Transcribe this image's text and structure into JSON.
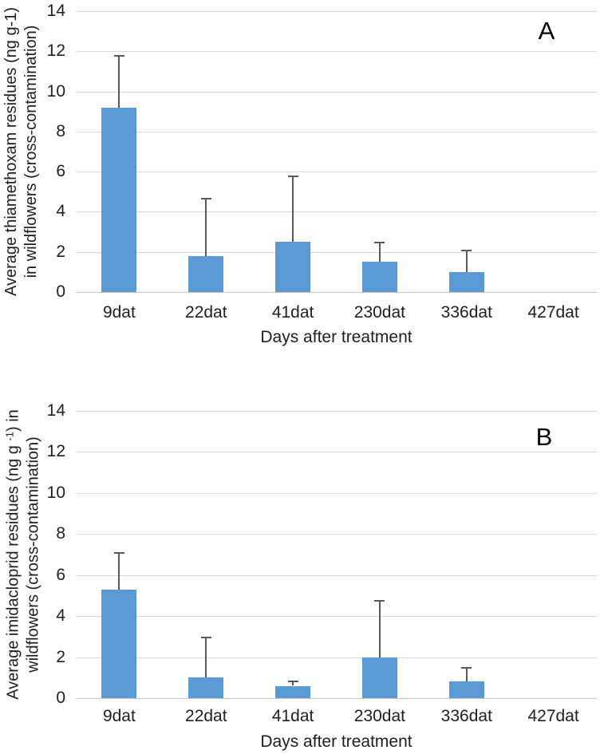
{
  "figure": {
    "background": "#FFFFFF",
    "text_color": "#1F1F1F"
  },
  "chart_data": [
    {
      "type": "bar",
      "panel_label": "A",
      "xlabel": "Days after treatment",
      "ylabel_lines": [
        [
          {
            "text": "Average thiamethoxam residues (ng g-1)"
          }
        ],
        [
          {
            "text": "in wildflowers (cross-contamination)"
          }
        ]
      ],
      "categories": [
        "9dat",
        "22dat",
        "41dat",
        "230dat",
        "336dat",
        "427dat"
      ],
      "values": [
        9.2,
        1.8,
        2.5,
        1.5,
        1.0,
        0
      ],
      "error_upper": [
        2.6,
        2.9,
        3.3,
        1.0,
        1.1,
        0
      ],
      "ylim": [
        0,
        14
      ],
      "yticks": [
        0,
        2,
        4,
        6,
        8,
        10,
        12,
        14
      ],
      "grid": true,
      "legend": "none",
      "bar_color": "#5B9BD5",
      "gridline_color": "#D9D9D9",
      "axisline_color": "#C6C6C6",
      "error_color": "#595959"
    },
    {
      "type": "bar",
      "panel_label": "B",
      "xlabel": "Days after treatment",
      "ylabel_lines": [
        [
          {
            "text": "Average imidacloprid residues (ng g "
          },
          {
            "text": "-1",
            "sup": true
          },
          {
            "text": ") in"
          }
        ],
        [
          {
            "text": "wildflowers (cross-contamination)"
          }
        ]
      ],
      "categories": [
        "9dat",
        "22dat",
        "41dat",
        "230dat",
        "336dat",
        "427dat"
      ],
      "values": [
        5.3,
        1.0,
        0.6,
        2.0,
        0.8,
        0
      ],
      "error_upper": [
        1.8,
        2.0,
        0.25,
        2.8,
        0.7,
        0
      ],
      "ylim": [
        0,
        14
      ],
      "yticks": [
        0,
        2,
        4,
        6,
        8,
        10,
        12,
        14
      ],
      "grid": true,
      "legend": "none",
      "bar_color": "#5B9BD5",
      "gridline_color": "#D9D9D9",
      "axisline_color": "#C6C6C6",
      "error_color": "#595959"
    }
  ]
}
